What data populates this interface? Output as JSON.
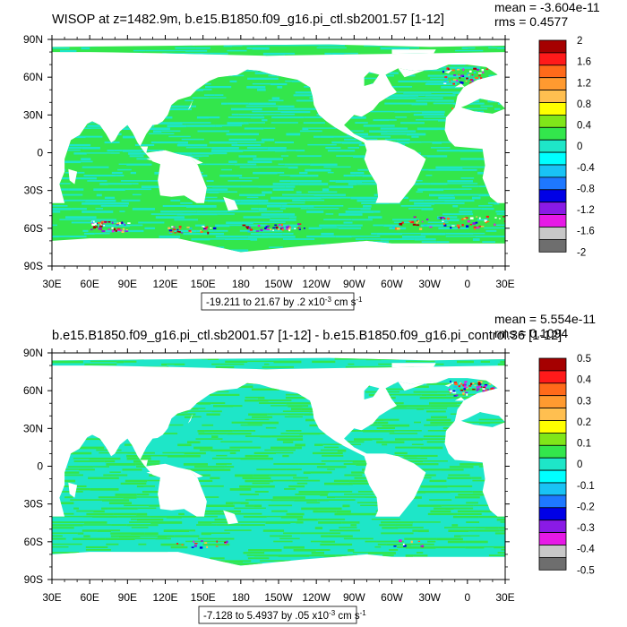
{
  "chart_data": [
    {
      "type": "heatmap",
      "title": "WISOP at z=1482.9m, b.e15.B1850.f09_g16.pi_ctl.sb2001.57 [1-12]",
      "stats": [
        "mean = -3.604e-11",
        "rms = 0.4577"
      ],
      "x_ticks": [
        "30E",
        "60E",
        "90E",
        "120E",
        "150E",
        "180",
        "150W",
        "120W",
        "90W",
        "60W",
        "30W",
        "0",
        "30E"
      ],
      "y_ticks": [
        "90N",
        "60N",
        "30N",
        "0",
        "30S",
        "60S",
        "90S"
      ],
      "xlim": [
        30,
        390
      ],
      "ylim": [
        -90,
        90
      ],
      "range_label": {
        "main": "-19.211 to 21.67 by .2 x10",
        "exp": "-3",
        "unit": " cm s",
        "uexp": "-1"
      },
      "colorbar": {
        "labels": [
          "2",
          "1.6",
          "1.2",
          "0.8",
          "0.4",
          "0",
          "-0.4",
          "-0.8",
          "-1.2",
          "-1.6",
          "-2"
        ],
        "levels": [
          2,
          1.6,
          1.2,
          0.8,
          0.4,
          0,
          -0.4,
          -0.8,
          -1.2,
          -1.6,
          -2
        ]
      },
      "dominant_color": "#33e64c",
      "secondary_color": "#1ee6c8"
    },
    {
      "type": "heatmap",
      "title": "b.e15.B1850.f09_g16.pi_ctl.sb2001.57 [1-12] - b.e15.B1850.f09_g16.pi_control.36 [1-12]",
      "stats": [
        "mean = 5.554e-11",
        "rms = 0.1094"
      ],
      "x_ticks": [
        "30E",
        "60E",
        "90E",
        "120E",
        "150E",
        "180",
        "150W",
        "120W",
        "90W",
        "60W",
        "30W",
        "0",
        "30E"
      ],
      "y_ticks": [
        "90N",
        "60N",
        "30N",
        "0",
        "30S",
        "60S",
        "90S"
      ],
      "xlim": [
        30,
        390
      ],
      "ylim": [
        -90,
        90
      ],
      "range_label": {
        "main": "-7.128 to 5.4937 by .05 x10",
        "exp": "-3",
        "unit": " cm s",
        "uexp": "-1"
      },
      "colorbar": {
        "labels": [
          "0.5",
          "0.4",
          "0.3",
          "0.2",
          "0.1",
          "0",
          "-0.1",
          "-0.2",
          "-0.3",
          "-0.4",
          "-0.5"
        ],
        "levels": [
          0.5,
          0.4,
          0.3,
          0.2,
          0.1,
          0,
          -0.1,
          -0.2,
          -0.3,
          -0.4,
          -0.5
        ]
      },
      "dominant_color": "#1ee6c8",
      "secondary_color": "#33e64c"
    }
  ],
  "palette": [
    "#a50000",
    "#ff1a1a",
    "#ff6a1a",
    "#ff9a30",
    "#ffbf50",
    "#ffff00",
    "#80e619",
    "#33e64c",
    "#1ee6c8",
    "#00ffff",
    "#19c3f5",
    "#1e78ff",
    "#0000e6",
    "#8a1ae6",
    "#e619e6",
    "#c8c8c8",
    "#6e6e6e"
  ]
}
